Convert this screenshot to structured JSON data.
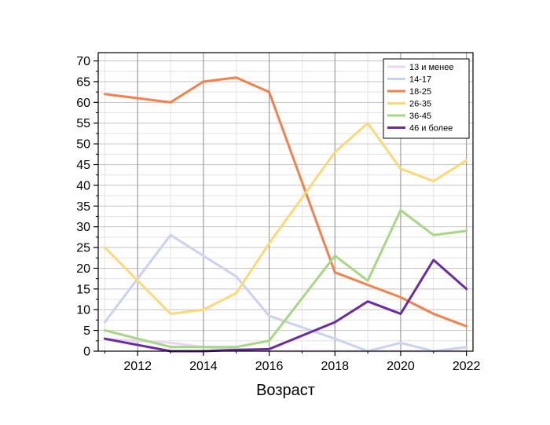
{
  "chart_data": {
    "type": "line",
    "title": "",
    "xlabel": "Возраст",
    "ylabel": "",
    "xlim": [
      2010.8,
      2022.2
    ],
    "ylim": [
      0,
      72
    ],
    "x_ticks": [
      2012,
      2014,
      2016,
      2018,
      2020,
      2022
    ],
    "y_ticks": [
      0,
      5,
      10,
      15,
      20,
      25,
      30,
      35,
      40,
      45,
      50,
      55,
      60,
      65,
      70
    ],
    "grid": true,
    "legend_position": "top-right",
    "x": [
      2011,
      2013,
      2014,
      2015,
      2016,
      2018,
      2019,
      2020,
      2021,
      2022
    ],
    "series": [
      {
        "name": "13 и менее",
        "color": "#ead6f2",
        "values": [
          3,
          2,
          1,
          0.5,
          0,
          0,
          0,
          0,
          0,
          0
        ]
      },
      {
        "name": "14-17",
        "color": "#c9d3ee",
        "values": [
          7,
          28,
          23,
          18,
          8.5,
          3,
          0,
          2,
          0,
          1
        ]
      },
      {
        "name": "18-25",
        "color": "#f4804a",
        "values": [
          62,
          60,
          65,
          66,
          62.5,
          19,
          16,
          13,
          9,
          6
        ]
      },
      {
        "name": "26-35",
        "color": "#fcd977",
        "values": [
          25,
          9,
          10,
          14,
          26,
          48,
          55,
          44,
          41,
          46
        ]
      },
      {
        "name": "36-45",
        "color": "#a6d785",
        "values": [
          5,
          1,
          1,
          1,
          2.5,
          23,
          17,
          34,
          28,
          29
        ]
      },
      {
        "name": "46 и более",
        "color": "#6a2ca0",
        "values": [
          3,
          0,
          0,
          0.3,
          0.5,
          7,
          12,
          9,
          22,
          15
        ]
      }
    ]
  }
}
